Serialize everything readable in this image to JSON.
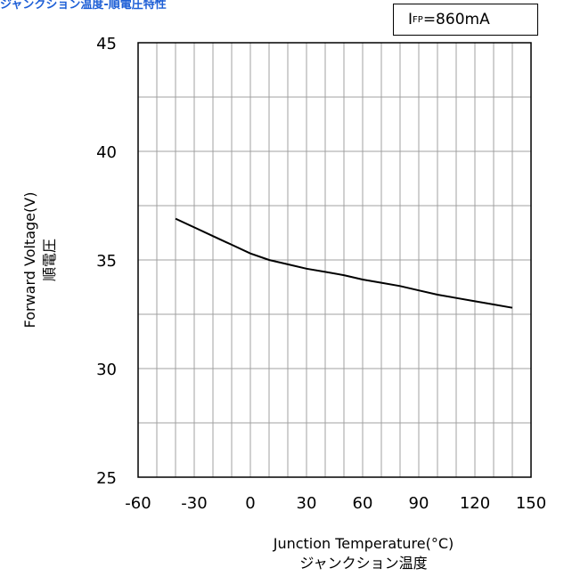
{
  "title": "ジャンクション温度-順電圧特性",
  "condition": {
    "symbol": "I",
    "subscript": "FP",
    "value": "=860mA"
  },
  "chart_data": {
    "type": "line",
    "title": "ジャンクション温度-順電圧特性",
    "xlabel": "Junction Temperature(°C)",
    "xlabel_jp": "ジャンクション温度",
    "ylabel": "Forward Voltage(V)",
    "ylabel_jp": "順電圧",
    "xlim": [
      -60,
      150
    ],
    "ylim": [
      25,
      45
    ],
    "x_ticks": [
      -60,
      -30,
      0,
      30,
      60,
      90,
      120,
      150
    ],
    "y_ticks": [
      25,
      30,
      35,
      40,
      45
    ],
    "x_minor_step": 10,
    "y_minor_step": 2.5,
    "grid": true,
    "line_color": "#000000",
    "series": [
      {
        "x": [
          -40,
          -30,
          -20,
          -10,
          0,
          10,
          20,
          30,
          40,
          50,
          60,
          70,
          80,
          90,
          100,
          110,
          120,
          130,
          140
        ],
        "y": [
          36.9,
          36.5,
          36.1,
          35.7,
          35.3,
          35.0,
          34.8,
          34.6,
          34.45,
          34.3,
          34.1,
          33.95,
          33.8,
          33.6,
          33.4,
          33.25,
          33.1,
          32.95,
          32.8
        ]
      }
    ]
  }
}
